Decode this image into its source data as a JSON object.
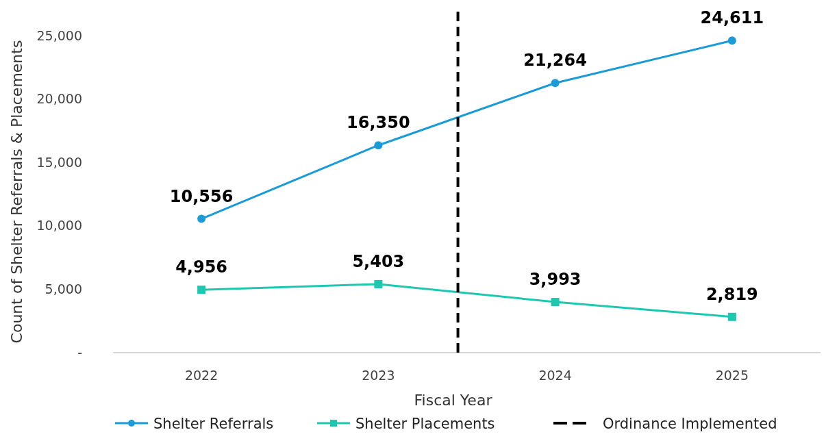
{
  "chart_data": {
    "type": "line",
    "xlabel": "Fiscal Year",
    "ylabel": "Count of Shelter Referrals & Placements",
    "x": [
      2022,
      2023,
      2024,
      2025
    ],
    "xlim": [
      2021.5,
      2025.5
    ],
    "xticks": [
      2022,
      2023,
      2024,
      2025
    ],
    "ylim": [
      0,
      27000
    ],
    "yticks": [
      {
        "value": 0,
        "label": "-"
      },
      {
        "value": 5000,
        "label": "5,000"
      },
      {
        "value": 10000,
        "label": "10,000"
      },
      {
        "value": 15000,
        "label": "15,000"
      },
      {
        "value": 20000,
        "label": "20,000"
      },
      {
        "value": 25000,
        "label": "25,000"
      }
    ],
    "series": [
      {
        "name": "Shelter Referrals",
        "color": "#1b9ad8",
        "marker": "circle",
        "values": [
          10556,
          16350,
          21264,
          24611
        ],
        "value_labels": [
          "10,556",
          "16,350",
          "21,264",
          "24,611"
        ]
      },
      {
        "name": "Shelter Placements",
        "color": "#1ec8b0",
        "marker": "square",
        "values": [
          4956,
          5403,
          3993,
          2819
        ],
        "value_labels": [
          "4,956",
          "5,403",
          "3,993",
          "2,819"
        ]
      }
    ],
    "ref_lines": [
      {
        "axis": "x",
        "value": 2023.45,
        "label": "Ordinance Implemented",
        "color": "#000000",
        "line_style": "dashed"
      }
    ],
    "grid": false,
    "legend": "bottom"
  }
}
